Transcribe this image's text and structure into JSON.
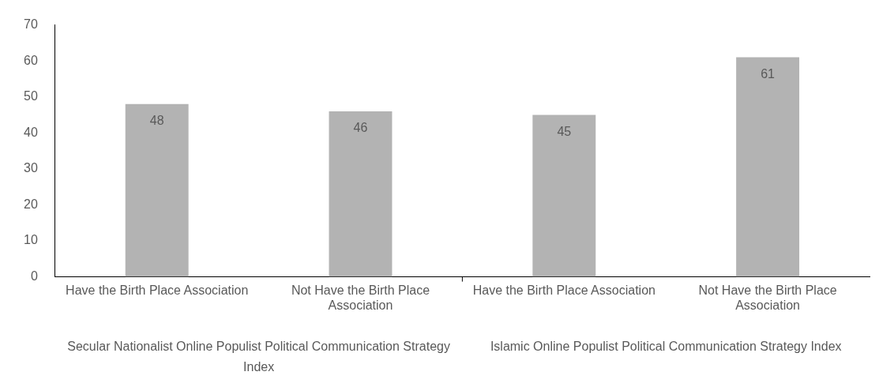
{
  "chart_data": {
    "type": "bar",
    "categories": [
      "Have the Birth Place Association",
      "Not Have the Birth Place Association",
      "Have the Birth Place Association",
      "Not Have the Birth Place Association"
    ],
    "values": [
      48,
      46,
      45,
      61
    ],
    "color": "#b3b3b3",
    "ylim": [
      0,
      70
    ],
    "yticks": [
      0,
      10,
      20,
      30,
      40,
      50,
      60,
      70
    ],
    "grid": false,
    "legend": false,
    "data_labels": true,
    "annotations": [
      "Secular Nationalist Online Populist Political Communication Strategy Index",
      "Islamic Online Populist Political Communication Strategy Index"
    ]
  }
}
